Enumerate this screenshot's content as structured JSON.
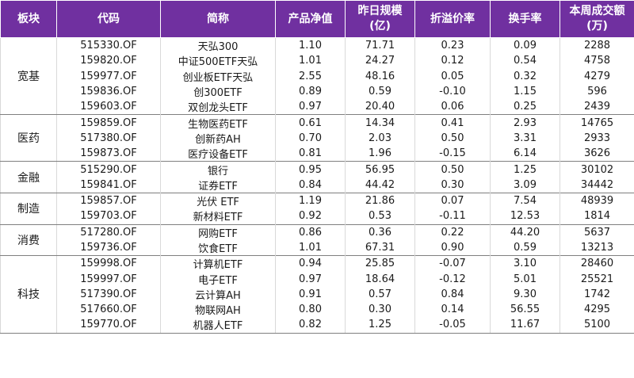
{
  "headers": {
    "sector": "板块",
    "code": "代码",
    "name": "简称",
    "nav": "产品净值",
    "scale": "昨日规模\n(亿)",
    "premium": "折溢价率",
    "turnover": "换手率",
    "volume": "本周成交额\n(万)"
  },
  "groups": [
    {
      "sector": "宽基",
      "rows": [
        {
          "code": "515330.OF",
          "name": "天弘300",
          "nav": "1.10",
          "scale": "71.71",
          "premium": "0.23",
          "turnover": "0.09",
          "volume": "2288"
        },
        {
          "code": "159820.OF",
          "name": "中证500ETF天弘",
          "nav": "1.01",
          "scale": "24.27",
          "premium": "0.12",
          "turnover": "0.54",
          "volume": "4758"
        },
        {
          "code": "159977.OF",
          "name": "创业板ETF天弘",
          "nav": "2.55",
          "scale": "48.16",
          "premium": "0.05",
          "turnover": "0.32",
          "volume": "4279"
        },
        {
          "code": "159836.OF",
          "name": "创300ETF",
          "nav": "0.89",
          "scale": "0.59",
          "premium": "-0.10",
          "turnover": "1.15",
          "volume": "596"
        },
        {
          "code": "159603.OF",
          "name": "双创龙头ETF",
          "nav": "0.97",
          "scale": "20.40",
          "premium": "0.06",
          "turnover": "0.25",
          "volume": "2439"
        }
      ]
    },
    {
      "sector": "医药",
      "rows": [
        {
          "code": "159859.OF",
          "name": "生物医药ETF",
          "nav": "0.61",
          "scale": "14.34",
          "premium": "0.41",
          "turnover": "2.93",
          "volume": "14765"
        },
        {
          "code": "517380.OF",
          "name": "创新药AH",
          "nav": "0.70",
          "scale": "2.03",
          "premium": "0.50",
          "turnover": "3.31",
          "volume": "2933"
        },
        {
          "code": "159873.OF",
          "name": "医疗设备ETF",
          "nav": "0.81",
          "scale": "1.96",
          "premium": "-0.15",
          "turnover": "6.14",
          "volume": "3626"
        }
      ]
    },
    {
      "sector": "金融",
      "rows": [
        {
          "code": "515290.OF",
          "name": "银行",
          "nav": "0.95",
          "scale": "56.95",
          "premium": "0.50",
          "turnover": "1.25",
          "volume": "30102"
        },
        {
          "code": "159841.OF",
          "name": "证券ETF",
          "nav": "0.84",
          "scale": "44.42",
          "premium": "0.30",
          "turnover": "3.09",
          "volume": "34442"
        }
      ]
    },
    {
      "sector": "制造",
      "rows": [
        {
          "code": "159857.OF",
          "name": "光伏 ETF",
          "nav": "1.19",
          "scale": "21.86",
          "premium": "0.07",
          "turnover": "7.54",
          "volume": "48939"
        },
        {
          "code": "159703.OF",
          "name": "新材料ETF",
          "nav": "0.92",
          "scale": "0.53",
          "premium": "-0.11",
          "turnover": "12.53",
          "volume": "1814"
        }
      ]
    },
    {
      "sector": "消费",
      "rows": [
        {
          "code": "517280.OF",
          "name": "网购ETF",
          "nav": "0.86",
          "scale": "0.36",
          "premium": "0.22",
          "turnover": "44.20",
          "volume": "5637"
        },
        {
          "code": "159736.OF",
          "name": "饮食ETF",
          "nav": "1.01",
          "scale": "67.31",
          "premium": "0.90",
          "turnover": "0.59",
          "volume": "13213"
        }
      ]
    },
    {
      "sector": "科技",
      "rows": [
        {
          "code": "159998.OF",
          "name": "计算机ETF",
          "nav": "0.94",
          "scale": "25.85",
          "premium": "-0.07",
          "turnover": "3.10",
          "volume": "28460"
        },
        {
          "code": "159997.OF",
          "name": "电子ETF",
          "nav": "0.97",
          "scale": "18.64",
          "premium": "-0.12",
          "turnover": "5.01",
          "volume": "25521"
        },
        {
          "code": "517390.OF",
          "name": "云计算AH",
          "nav": "0.91",
          "scale": "0.57",
          "premium": "0.84",
          "turnover": "9.30",
          "volume": "1742"
        },
        {
          "code": "517660.OF",
          "name": "物联网AH",
          "nav": "0.80",
          "scale": "0.30",
          "premium": "0.14",
          "turnover": "56.55",
          "volume": "4295"
        },
        {
          "code": "159770.OF",
          "name": "机器人ETF",
          "nav": "0.82",
          "scale": "1.25",
          "premium": "-0.05",
          "turnover": "11.67",
          "volume": "5100"
        }
      ]
    }
  ]
}
